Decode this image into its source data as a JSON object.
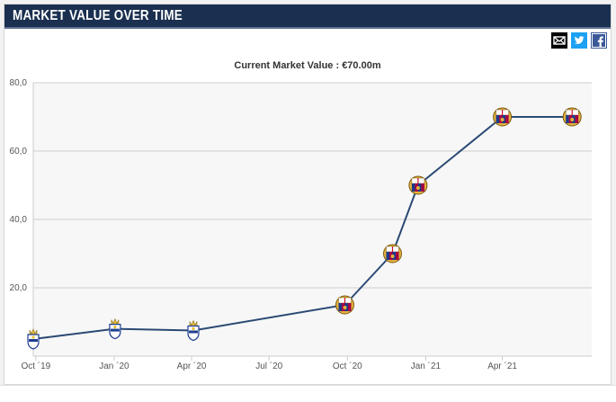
{
  "header": {
    "title": "MARKET VALUE OVER TIME"
  },
  "share": {
    "email_icon": "envelope-icon",
    "twitter_icon": "twitter-bird-icon",
    "facebook_icon": "facebook-f-icon"
  },
  "chart_data": {
    "type": "line",
    "title": "Current Market Value : €70.00m",
    "ylim": [
      0,
      80
    ],
    "yticks": [
      20,
      40,
      60,
      80
    ],
    "ytick_labels": [
      "20,0",
      "40,0",
      "60,0",
      "80,0"
    ],
    "xtick_labels": [
      "Oct ´19",
      "Jan ´20",
      "Apr ´20",
      "Jul ´20",
      "Oct ´20",
      "Jan ´21",
      "Apr ´21"
    ],
    "xtick_dates": [
      "2019-10-01",
      "2020-01-01",
      "2020-04-01",
      "2020-07-01",
      "2020-10-01",
      "2021-01-01",
      "2021-04-01"
    ],
    "xlim": [
      "2019-09-28",
      "2021-07-15"
    ],
    "series": [
      {
        "x": [
          "2019-09-28",
          "2020-01-02",
          "2020-04-03",
          "2020-09-28",
          "2020-11-23",
          "2020-12-23",
          "2021-04-01",
          "2021-06-22"
        ],
        "values": [
          5,
          8,
          7.5,
          15,
          30,
          50,
          70,
          70
        ],
        "markers": [
          "club-crest-icon",
          "club-crest-icon",
          "club-crest-icon",
          "barcelona-crest-icon",
          "barcelona-crest-icon",
          "barcelona-crest-icon",
          "barcelona-crest-icon",
          "barcelona-crest-icon"
        ]
      }
    ],
    "line_color": "#2b4a74",
    "grid": true,
    "plot_background": "#f7f7f7"
  }
}
